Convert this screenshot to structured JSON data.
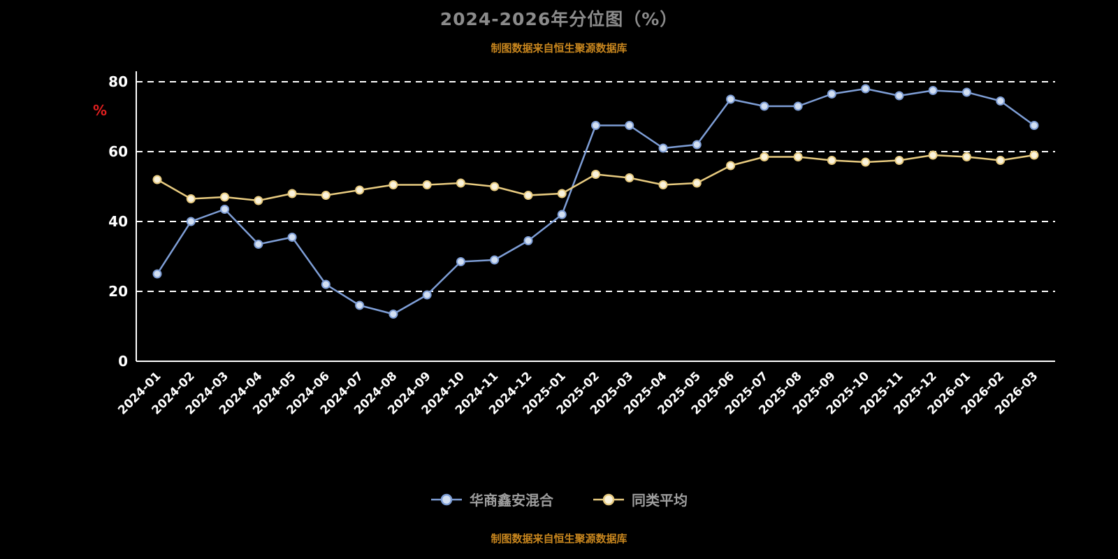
{
  "header": {
    "title": "2024-2026年分位图（%）",
    "subtitle": "制图数据来自恒生聚源数据库"
  },
  "footer": {
    "source_text": "制图数据来自恒生聚源数据库"
  },
  "colors": {
    "background": "#000000",
    "title_gray": "#8b8b8b",
    "axis_white": "#ffffff",
    "ylabel_red": "#e01f1f",
    "source_orange": "#c8861e",
    "series_blue": "#7e9ed6",
    "series_blue_fill": "#d2dff2",
    "series_yellow": "#e8cb80",
    "series_yellow_fill": "#faf3dc",
    "legend_text": "#9e9e9e"
  },
  "chart_data": {
    "type": "line",
    "title": "2024-2026年分位图（%）",
    "xlabel": "",
    "ylabel": "%",
    "ylim": [
      0,
      80
    ],
    "yticks": [
      0,
      20,
      40,
      60,
      80
    ],
    "grid": "horizontal-dashed",
    "legend_position": "bottom",
    "categories": [
      "2024-01",
      "2024-02",
      "2024-03",
      "2024-04",
      "2024-05",
      "2024-06",
      "2024-07",
      "2024-08",
      "2024-09",
      "2024-10",
      "2024-11",
      "2024-12",
      "2025-01",
      "2025-02",
      "2025-03",
      "2025-04",
      "2025-05",
      "2025-06",
      "2025-07",
      "2025-08",
      "2025-09",
      "2025-10",
      "2025-11",
      "2025-12",
      "2026-01",
      "2026-02",
      "2026-03"
    ],
    "series": [
      {
        "name": "华商鑫安混合",
        "color": "#7e9ed6",
        "marker_fill": "#d2dff2",
        "values": [
          25,
          40,
          43.5,
          33.5,
          35.5,
          22,
          16,
          13.5,
          19,
          28.5,
          29,
          34.5,
          42,
          67.5,
          67.5,
          61,
          62,
          75,
          73,
          73,
          76.5,
          78,
          76,
          77.5,
          77,
          74.5,
          67.5
        ]
      },
      {
        "name": "同类平均",
        "color": "#e8cb80",
        "marker_fill": "#faf3dc",
        "values": [
          52,
          46.5,
          47,
          46,
          48,
          47.5,
          49,
          50.5,
          50.5,
          51,
          50,
          47.5,
          48,
          53.5,
          52.5,
          50.5,
          51,
          56,
          58.5,
          58.5,
          57.5,
          57,
          57.5,
          59,
          58.5,
          57.5,
          59
        ]
      }
    ]
  }
}
